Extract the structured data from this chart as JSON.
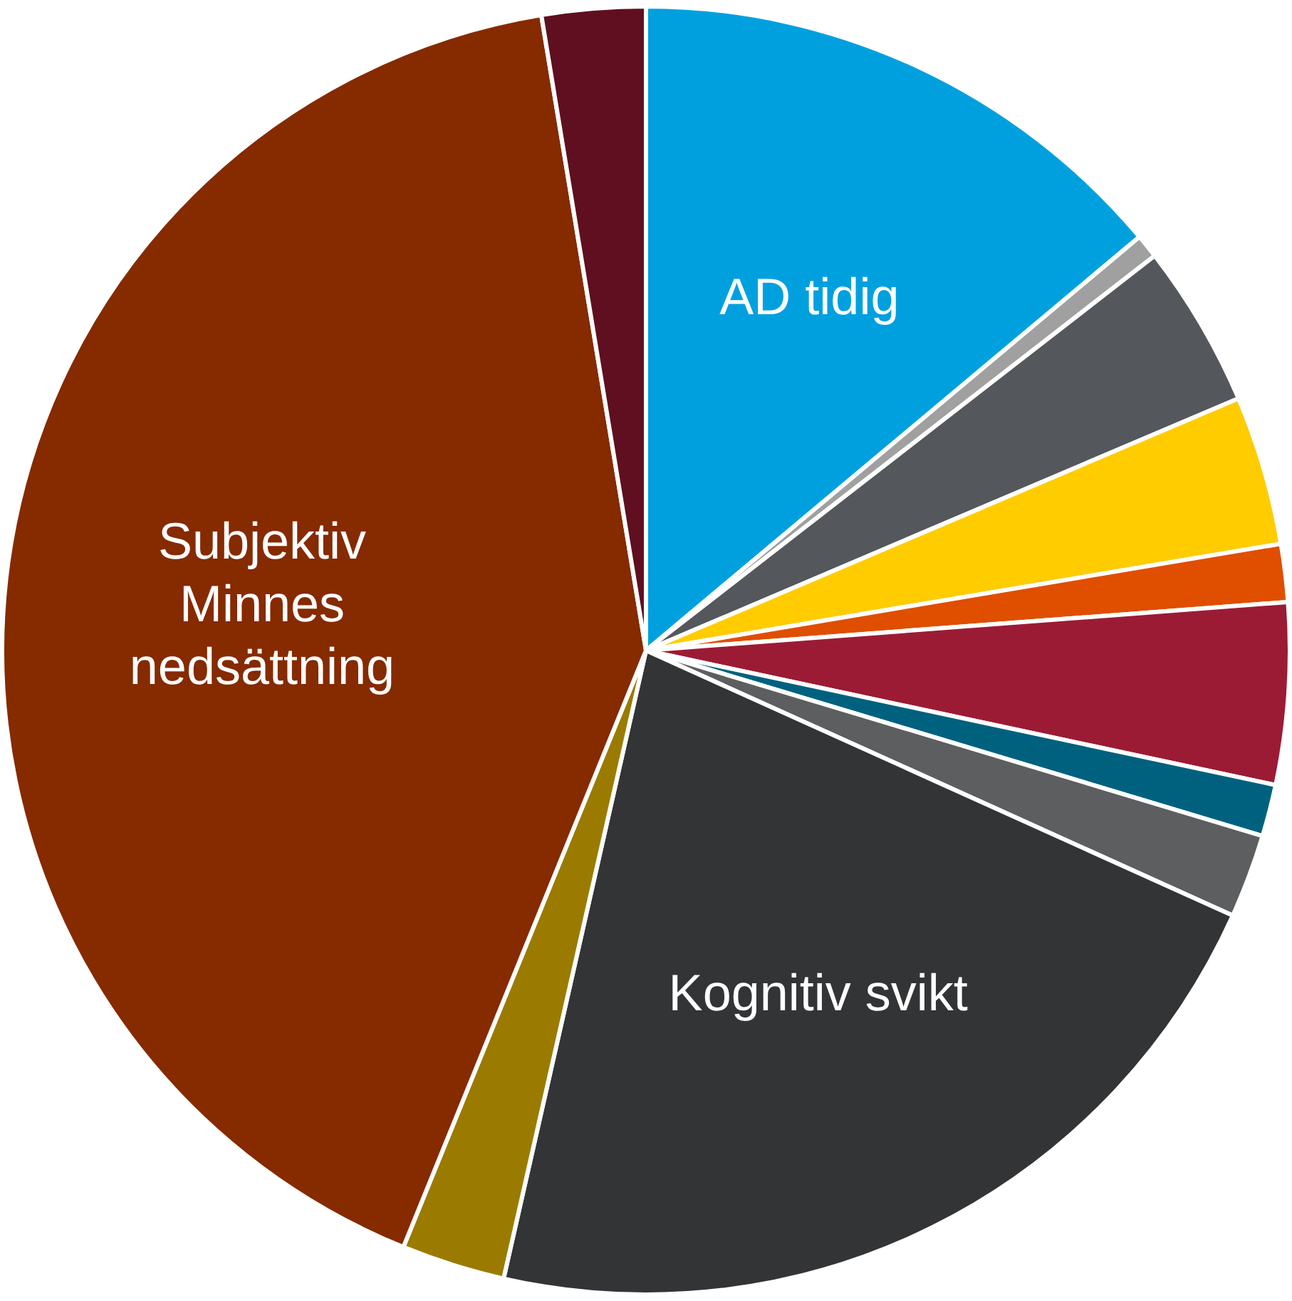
{
  "chart_data": {
    "type": "pie",
    "categories": [
      "AD tidig",
      null,
      null,
      null,
      null,
      null,
      null,
      null,
      "Kognitiv svikt",
      null,
      "Subjektiv Minnes nedsättning",
      null
    ],
    "values": [
      13.9,
      0.6,
      4.1,
      3.75,
      1.45,
      4.55,
      1.3,
      2.1,
      21.8,
      2.6,
      41.25,
      2.6
    ],
    "colors": [
      "#00a0df",
      "#a0a0a0",
      "#54575c",
      "#ffcc00",
      "#e04e00",
      "#9b1b34",
      "#00617f",
      "#5d5e60",
      "#333436",
      "#9a7b00",
      "#862a00",
      "#5f0f20"
    ],
    "legend": false
  }
}
